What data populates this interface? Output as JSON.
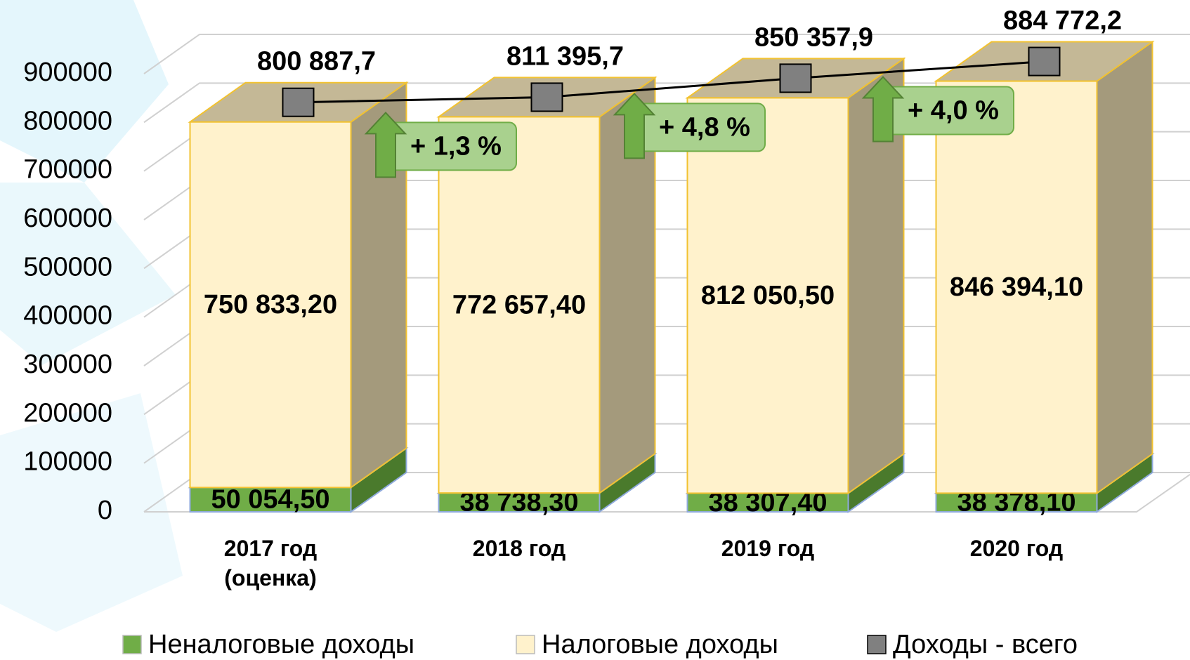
{
  "chart_data": {
    "type": "bar",
    "stacked": true,
    "categories": [
      "2017 год (оценка)",
      "2018 год",
      "2019 год",
      "2020 год"
    ],
    "series": [
      {
        "name": "Неналоговые доходы",
        "color": "#70ad47",
        "values": [
          50054.5,
          38738.3,
          38307.4,
          38378.1
        ],
        "value_labels": [
          "50 054,50",
          "38 738,30",
          "38 307,40",
          "38 378,10"
        ]
      },
      {
        "name": "Налоговые доходы",
        "color": "#fff2cc",
        "values": [
          750833.2,
          772657.4,
          812050.5,
          846394.1
        ],
        "value_labels": [
          "750 833,20",
          "772 657,40",
          "812 050,50",
          "846 394,10"
        ]
      },
      {
        "name": "Доходы - всего",
        "type": "line",
        "color": "#808080",
        "values": [
          800887.7,
          811395.7,
          850357.9,
          884772.2
        ],
        "value_labels": [
          "800 887,7",
          "811 395,7",
          "850 357,9",
          "884 772,2"
        ]
      }
    ],
    "annotations": [
      "+ 1,3 %",
      "+ 4,8 %",
      "+ 4,0 %"
    ],
    "ylim": [
      0,
      900000
    ],
    "yticks": [
      0,
      100000,
      200000,
      300000,
      400000,
      500000,
      600000,
      700000,
      800000,
      900000
    ],
    "grid": true,
    "legend": "bottom"
  }
}
